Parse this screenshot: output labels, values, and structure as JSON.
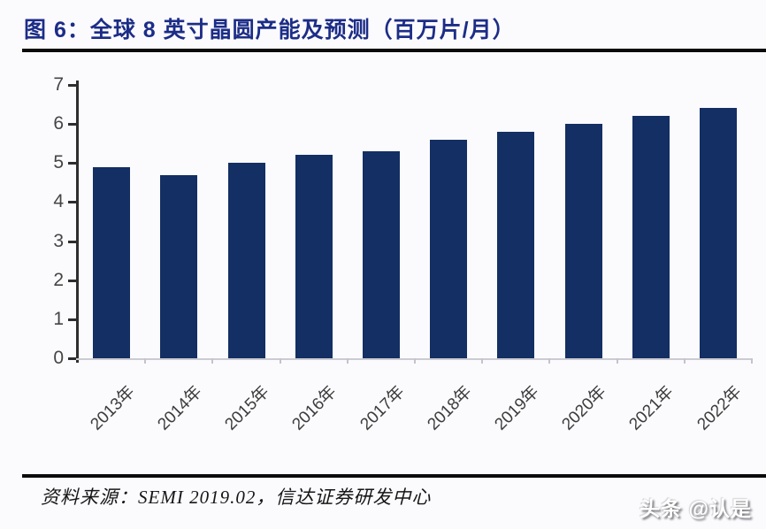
{
  "header": {
    "title": "图 6：全球 8 英寸晶圆产能及预测（百万片/月）",
    "title_color": "#1c2d87"
  },
  "chart_data": {
    "type": "bar",
    "categories": [
      "2013年",
      "2014年",
      "2015年",
      "2016年",
      "2017年",
      "2018年",
      "2019年",
      "2020年",
      "2021年",
      "2022年"
    ],
    "values": [
      4.9,
      4.7,
      5.0,
      5.2,
      5.3,
      5.6,
      5.8,
      6.0,
      6.2,
      6.4
    ],
    "title": "图 6：全球 8 英寸晶圆产能及预测（百万片/月）",
    "xlabel": "",
    "ylabel": "",
    "ylim": [
      0,
      7
    ],
    "yticks": [
      0,
      1,
      2,
      3,
      4,
      5,
      6,
      7
    ],
    "grid": false,
    "legend": null,
    "bar_color": "#132f63",
    "x_tick_rotation_deg": 45
  },
  "footer": {
    "source": "资料来源：SEMI 2019.02，信达证券研发中心"
  },
  "watermark": {
    "text": "头条 @认是"
  }
}
